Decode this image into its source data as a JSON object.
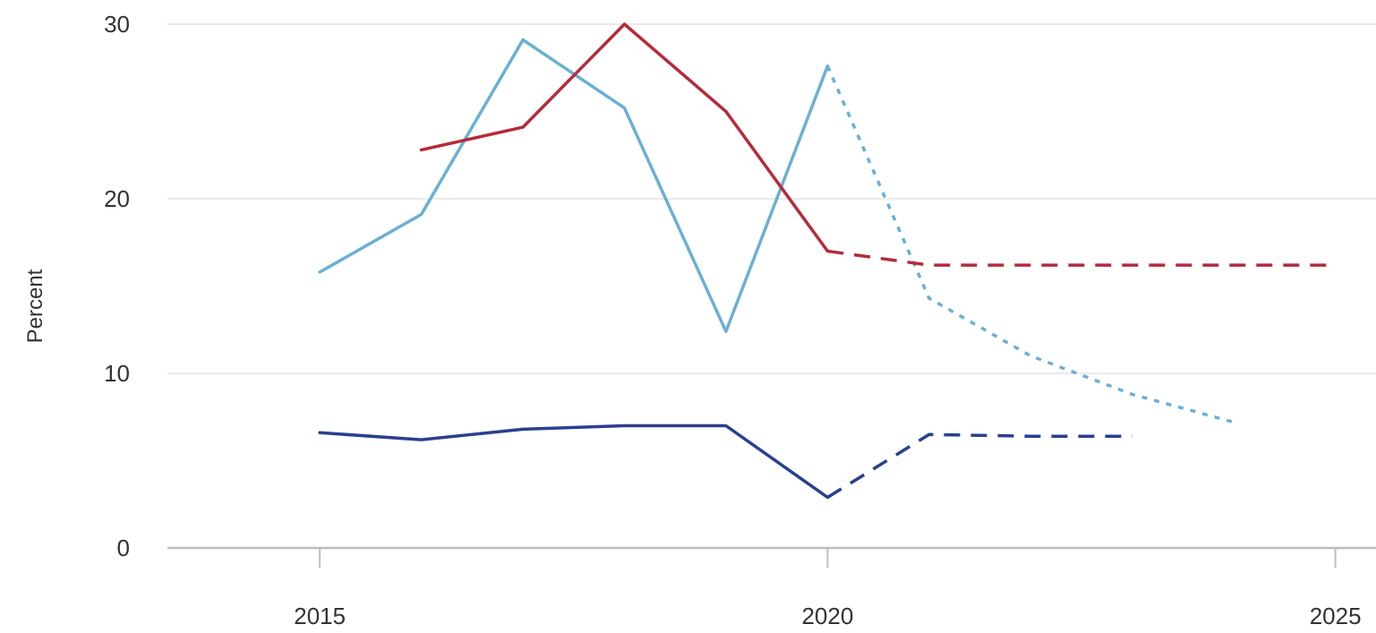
{
  "chart_data": {
    "type": "line",
    "title": "",
    "xlabel": "",
    "ylabel": "Percent",
    "xlim": [
      2013.5,
      2025.4
    ],
    "ylim": [
      0,
      30
    ],
    "x_ticks": [
      2015,
      2020,
      2025
    ],
    "y_ticks": [
      0,
      10,
      20,
      30
    ],
    "grid": "horizontal",
    "legend": "none",
    "series": [
      {
        "color": "#6ab0d4",
        "actual": {
          "x": [
            2015,
            2016,
            2017,
            2018,
            2019,
            2020
          ],
          "y": [
            15.8,
            19.1,
            29.1,
            25.2,
            12.4,
            27.6
          ]
        },
        "projection": {
          "x": [
            2020,
            2021,
            2022,
            2023,
            2024
          ],
          "y": [
            27.6,
            14.3,
            11.0,
            8.8,
            7.2
          ]
        },
        "projection_style": "dotted"
      },
      {
        "color": "#b52b3a",
        "actual": {
          "x": [
            2016,
            2017,
            2018,
            2019,
            2020
          ],
          "y": [
            22.8,
            24.1,
            30.0,
            25.0,
            17.0
          ]
        },
        "projection": {
          "x": [
            2020,
            2021,
            2022,
            2023,
            2024,
            2025
          ],
          "y": [
            17.0,
            16.2,
            16.2,
            16.2,
            16.2,
            16.2
          ]
        },
        "projection_style": "dashed"
      },
      {
        "color": "#2a3f8f",
        "actual": {
          "x": [
            2015,
            2016,
            2017,
            2018,
            2019,
            2020
          ],
          "y": [
            6.6,
            6.2,
            6.8,
            7.0,
            7.0,
            2.9
          ]
        },
        "projection": {
          "x": [
            2020,
            2021,
            2022,
            2023
          ],
          "y": [
            2.9,
            6.5,
            6.4,
            6.4
          ]
        },
        "projection_style": "dashed"
      }
    ]
  },
  "colors": {
    "gridline": "#e3e3e3",
    "axis": "#bdbdbd",
    "text": "#333333"
  }
}
